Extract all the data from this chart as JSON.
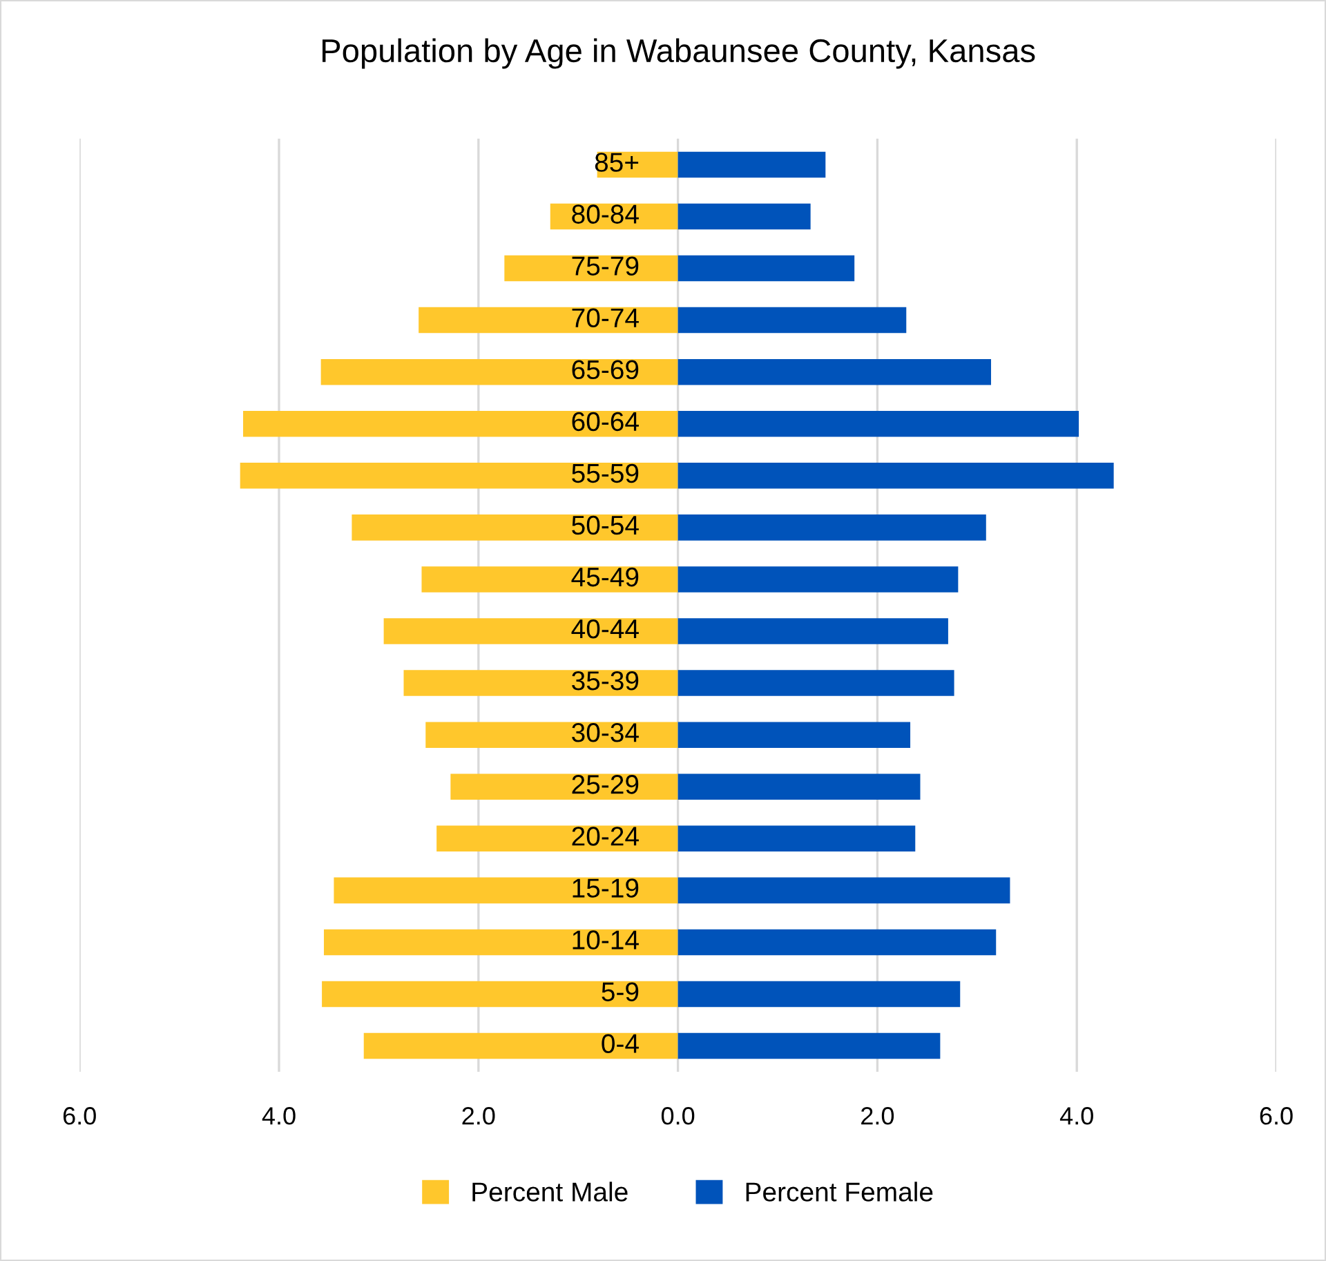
{
  "chart_data": {
    "type": "bar",
    "orientation": "horizontal",
    "stacked": true,
    "title": "Population by Age in Wabaunsee County, Kansas",
    "categories": [
      "85+",
      "80-84",
      "75-79",
      "70-74",
      "65-69",
      "60-64",
      "55-59",
      "50-54",
      "45-49",
      "40-44",
      "35-39",
      "30-34",
      "25-29",
      "20-24",
      "15-19",
      "10-14",
      "5-9",
      "0-4"
    ],
    "series": [
      {
        "name": "Percent Male",
        "color": "#ffc72c",
        "values": [
          -0.81,
          -1.28,
          -1.74,
          -2.6,
          -3.58,
          -4.36,
          -4.39,
          -3.27,
          -2.57,
          -2.95,
          -2.75,
          -2.53,
          -2.28,
          -2.42,
          -3.45,
          -3.55,
          -3.57,
          -3.15
        ]
      },
      {
        "name": "Percent Female",
        "color": "#0053ba",
        "values": [
          1.48,
          1.33,
          1.77,
          2.29,
          3.14,
          4.02,
          4.37,
          3.09,
          2.81,
          2.71,
          2.77,
          2.33,
          2.43,
          2.38,
          3.33,
          3.19,
          2.83,
          2.63
        ]
      }
    ],
    "xlim": [
      -6,
      6
    ],
    "xticks": [
      {
        "value": -6,
        "label": "6.0"
      },
      {
        "value": -4,
        "label": "4.0"
      },
      {
        "value": -2,
        "label": "2.0"
      },
      {
        "value": 0,
        "label": "0.0"
      },
      {
        "value": 2,
        "label": "2.0"
      },
      {
        "value": 4,
        "label": "4.0"
      },
      {
        "value": 6,
        "label": "6.0"
      }
    ],
    "grid": "x",
    "legend": "bottom"
  }
}
